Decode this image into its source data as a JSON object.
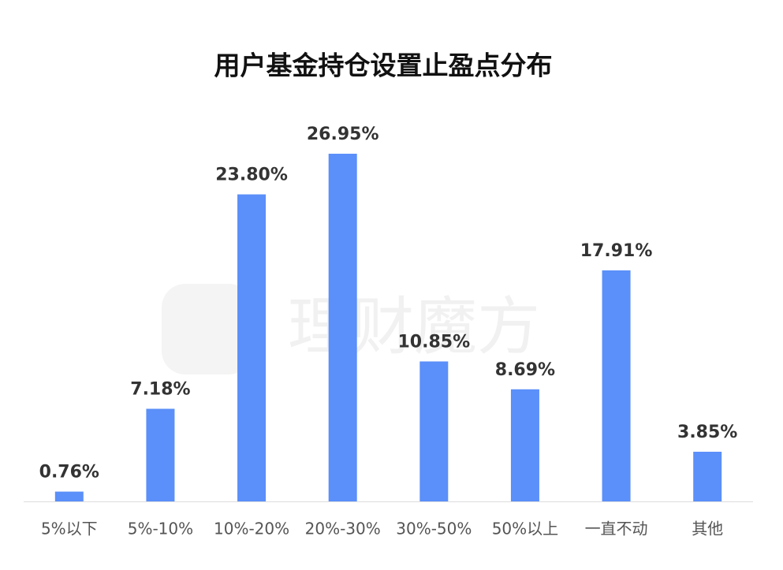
{
  "chart_data": {
    "type": "bar",
    "title": "用户基金持仓设置止盈点分布",
    "watermark": "理财魔方",
    "categories": [
      "5%以下",
      "5%-10%",
      "10%-20%",
      "20%-30%",
      "30%-50%",
      "50%以上",
      "一直不动",
      "其他"
    ],
    "values": [
      0.76,
      7.18,
      23.8,
      26.95,
      10.85,
      8.69,
      17.91,
      3.85
    ],
    "value_labels": [
      "0.76%",
      "7.18%",
      "23.80%",
      "26.95%",
      "10.85%",
      "8.69%",
      "17.91%",
      "3.85%"
    ],
    "color": "#5b8ff9"
  }
}
